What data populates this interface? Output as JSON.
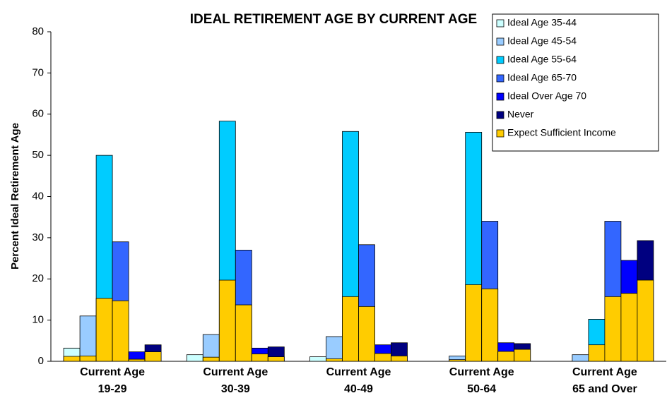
{
  "chart_data": {
    "type": "bar",
    "title": "IDEAL RETIREMENT AGE BY CURRENT AGE",
    "y_label": "Percent Ideal Retirement Age",
    "categories": [
      [
        "Current Age",
        "19-29"
      ],
      [
        "Current Age",
        "30-39"
      ],
      [
        "Current Age",
        "40-49"
      ],
      [
        "Current Age",
        "50-64"
      ],
      [
        "Current Age",
        "65 and Over"
      ]
    ],
    "ylim": [
      0,
      80
    ],
    "yticks": [
      0,
      10,
      20,
      30,
      40,
      50,
      60,
      70,
      80
    ],
    "legend": "upper right",
    "series": [
      {
        "name": "Ideal Age 35-44",
        "color": "#ccffff",
        "values": [
          3.2,
          1.6,
          1.1,
          0,
          0
        ]
      },
      {
        "name": "Ideal Age 45-54",
        "color": "#99ccff",
        "values": [
          11,
          6.5,
          6,
          1.3,
          1.6
        ]
      },
      {
        "name": "Ideal Age 55-64",
        "color": "#00ccff",
        "values": [
          50,
          58.3,
          55.8,
          55.6,
          10.2
        ]
      },
      {
        "name": "Ideal Age 65-70",
        "color": "#3366ff",
        "values": [
          29,
          27,
          28.3,
          34,
          34
        ]
      },
      {
        "name": "Ideal Over Age 70",
        "color": "#0000ff",
        "values": [
          2.3,
          3.2,
          4,
          4.5,
          24.5
        ]
      },
      {
        "name": "Never",
        "color": "#000080",
        "values": [
          4,
          3.5,
          4.5,
          4.3,
          29.3
        ]
      },
      {
        "name": "Expect Sufficient Income",
        "color": "#ffcc00",
        "values": [
          [
            1.2,
            1.3,
            15.3,
            14.7,
            0.5,
            2.3
          ],
          [
            0,
            1,
            19.7,
            13.7,
            1.8,
            1.1
          ],
          [
            0,
            0.6,
            15.7,
            13.3,
            1.9,
            1.3
          ],
          [
            0,
            0.4,
            18.6,
            17.6,
            2.4,
            2.9
          ],
          [
            0,
            0,
            4,
            15.7,
            16.5,
            19.7
          ]
        ]
      }
    ]
  }
}
